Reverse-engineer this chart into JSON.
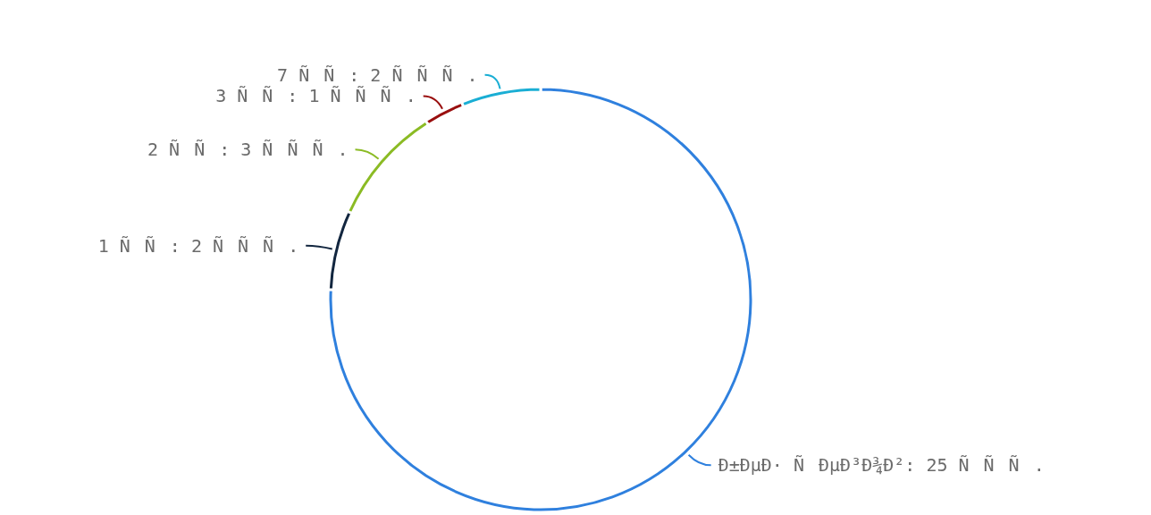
{
  "chart_data": {
    "type": "donut",
    "categories": [
      "Ð±ÐµÐ· ÑÐµÐ³Ð¾Ð²",
      "1 ÑÑ",
      "2 ÑÑ",
      "3 ÑÑ",
      "7 ÑÑ"
    ],
    "values": [
      25,
      2,
      3,
      1,
      2
    ],
    "value_labels": [
      "25 ÑÑÑ.",
      "2 ÑÑÑ.",
      "3 ÑÑÑ.",
      "1 ÑÑÑ.",
      "2 ÑÑÑ."
    ],
    "colors": [
      "#2f80de",
      "#12263f",
      "#8bbb24",
      "#990f0f",
      "#1aaed4"
    ]
  }
}
